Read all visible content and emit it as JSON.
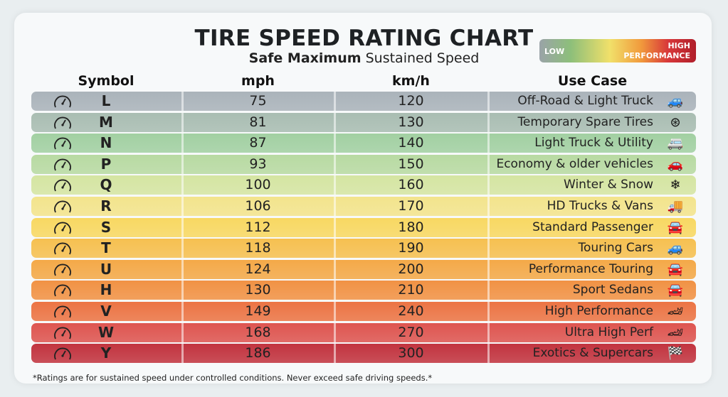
{
  "chart_data": {
    "type": "table",
    "title": "TIRE SPEED RATING CHART",
    "subtitle_bold": "Safe Maximum",
    "subtitle_rest": "Sustained Speed",
    "legend": {
      "low": "LOW",
      "high_line1": "HIGH",
      "high_line2": "PERFORMANCE"
    },
    "columns": [
      "Symbol",
      "mph",
      "km/h",
      "Use Case"
    ],
    "rows": [
      {
        "symbol": "L",
        "mph": "75",
        "kmh": "120",
        "use": "Off-Road & Light Truck",
        "icon": "jeep-icon",
        "color": "#aab3ba"
      },
      {
        "symbol": "M",
        "mph": "81",
        "kmh": "130",
        "use": "Temporary Spare Tires",
        "icon": "tire-icon",
        "color": "#a9bdb2"
      },
      {
        "symbol": "N",
        "mph": "87",
        "kmh": "140",
        "use": "Light Truck & Utility",
        "icon": "van-icon",
        "color": "#a2d0a2"
      },
      {
        "symbol": "P",
        "mph": "93",
        "kmh": "150",
        "use": "Economy & older vehicles",
        "icon": "hatchback-icon",
        "color": "#b8daa2"
      },
      {
        "symbol": "Q",
        "mph": "100",
        "kmh": "160",
        "use": "Winter & Snow",
        "icon": "snowflake-icon",
        "color": "#d5e5a2"
      },
      {
        "symbol": "R",
        "mph": "106",
        "kmh": "170",
        "use": "HD Trucks & Vans",
        "icon": "box-truck-icon",
        "color": "#f3e48c"
      },
      {
        "symbol": "S",
        "mph": "112",
        "kmh": "180",
        "use": "Standard Passenger",
        "icon": "sedan-icon",
        "color": "#f8d862"
      },
      {
        "symbol": "T",
        "mph": "118",
        "kmh": "190",
        "use": "Touring Cars",
        "icon": "suv-icon",
        "color": "#f6c050"
      },
      {
        "symbol": "U",
        "mph": "124",
        "kmh": "200",
        "use": "Performance Touring",
        "icon": "sedan-icon",
        "color": "#f4a948"
      },
      {
        "symbol": "H",
        "mph": "130",
        "kmh": "210",
        "use": "Sport Sedans",
        "icon": "sedan-icon",
        "color": "#f19244"
      },
      {
        "symbol": "V",
        "mph": "149",
        "kmh": "240",
        "use": "High Performance",
        "icon": "sports-car-icon",
        "color": "#ec7444"
      },
      {
        "symbol": "W",
        "mph": "168",
        "kmh": "270",
        "use": "Ultra High Perf",
        "icon": "sports-car-icon",
        "color": "#de5550"
      },
      {
        "symbol": "Y",
        "mph": "186",
        "kmh": "300",
        "use": "Exotics & Supercars",
        "icon": "checkered-flag-icon",
        "color": "#c2343f"
      }
    ],
    "footnote": "*Ratings are for sustained speed under controlled conditions. Never exceed safe driving speeds.*"
  }
}
